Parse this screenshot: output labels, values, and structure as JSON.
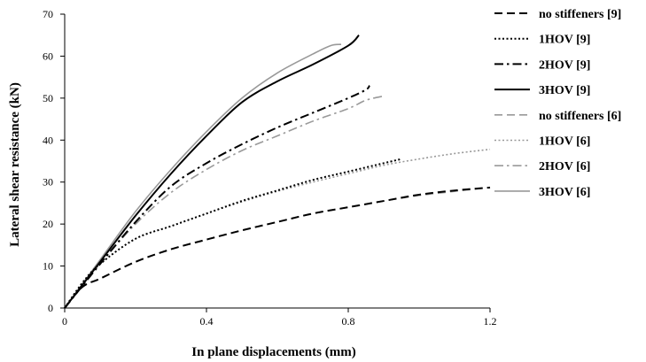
{
  "chart_data": {
    "type": "line",
    "title": "",
    "xlabel": "In plane displacements (mm)",
    "ylabel": "Lateral shear resistance (kN)",
    "xlim": [
      0,
      1.2
    ],
    "ylim": [
      0,
      70
    ],
    "x_ticks": [
      0,
      0.4,
      0.8,
      1.2
    ],
    "y_ticks": [
      0,
      10,
      20,
      30,
      40,
      50,
      60,
      70
    ],
    "x_tick_labels": [
      "0",
      "0.4",
      "0.8",
      "1.2"
    ],
    "y_tick_labels": [
      "0",
      "10",
      "20",
      "30",
      "40",
      "50",
      "60",
      "70"
    ],
    "grid": false,
    "legend_position": "right",
    "series": [
      {
        "name": "no stiffeners [9]",
        "color": "#000000",
        "style": "dashed",
        "points": [
          [
            0,
            0
          ],
          [
            0.05,
            5
          ],
          [
            0.1,
            7
          ],
          [
            0.2,
            11
          ],
          [
            0.3,
            14
          ],
          [
            0.4,
            16.3
          ],
          [
            0.5,
            18.5
          ],
          [
            0.6,
            20.5
          ],
          [
            0.7,
            22.5
          ],
          [
            0.8,
            24
          ],
          [
            0.9,
            25.5
          ],
          [
            1.0,
            27
          ],
          [
            1.1,
            28
          ],
          [
            1.2,
            28.7
          ]
        ]
      },
      {
        "name": "1HOV [9]",
        "color": "#000000",
        "style": "dotted",
        "points": [
          [
            0,
            0
          ],
          [
            0.05,
            6
          ],
          [
            0.1,
            10.5
          ],
          [
            0.2,
            16.5
          ],
          [
            0.3,
            19.5
          ],
          [
            0.4,
            22.5
          ],
          [
            0.5,
            25.5
          ],
          [
            0.6,
            28
          ],
          [
            0.7,
            30.5
          ],
          [
            0.8,
            32.5
          ],
          [
            0.9,
            34.5
          ],
          [
            0.95,
            35.5
          ]
        ]
      },
      {
        "name": "2HOV [9]",
        "color": "#000000",
        "style": "dashdot",
        "points": [
          [
            0,
            0
          ],
          [
            0.1,
            10.5
          ],
          [
            0.2,
            20.5
          ],
          [
            0.3,
            29
          ],
          [
            0.4,
            34.5
          ],
          [
            0.5,
            39
          ],
          [
            0.6,
            43
          ],
          [
            0.7,
            46.5
          ],
          [
            0.8,
            50
          ],
          [
            0.85,
            52
          ],
          [
            0.86,
            53
          ]
        ]
      },
      {
        "name": "3HOV [9]",
        "color": "#000000",
        "style": "solid",
        "points": [
          [
            0,
            0
          ],
          [
            0.1,
            11
          ],
          [
            0.2,
            22
          ],
          [
            0.3,
            32
          ],
          [
            0.4,
            41
          ],
          [
            0.5,
            49
          ],
          [
            0.6,
            54
          ],
          [
            0.7,
            58
          ],
          [
            0.8,
            62.5
          ],
          [
            0.83,
            65
          ]
        ]
      },
      {
        "name": "no stiffeners [6]",
        "color": "#999999",
        "style": "dashed",
        "points": [
          [
            0,
            0
          ],
          [
            0.05,
            5
          ],
          [
            0.1,
            7
          ],
          [
            0.2,
            11
          ],
          [
            0.3,
            14
          ],
          [
            0.4,
            16.3
          ],
          [
            0.5,
            18.5
          ],
          [
            0.6,
            20.5
          ],
          [
            0.7,
            22.5
          ],
          [
            0.8,
            24
          ],
          [
            0.9,
            25.5
          ],
          [
            1.0,
            26.8
          ],
          [
            1.1,
            27.8
          ],
          [
            1.2,
            28.7
          ]
        ]
      },
      {
        "name": "1HOV [6]",
        "color": "#999999",
        "style": "dotted",
        "points": [
          [
            0,
            0
          ],
          [
            0.05,
            6
          ],
          [
            0.1,
            10.5
          ],
          [
            0.2,
            16.5
          ],
          [
            0.3,
            19.5
          ],
          [
            0.4,
            22.5
          ],
          [
            0.5,
            25.3
          ],
          [
            0.6,
            27.8
          ],
          [
            0.7,
            30
          ],
          [
            0.8,
            32
          ],
          [
            0.9,
            34
          ],
          [
            1.0,
            35.5
          ],
          [
            1.1,
            36.8
          ],
          [
            1.2,
            37.8
          ]
        ]
      },
      {
        "name": "2HOV [6]",
        "color": "#999999",
        "style": "dashdot",
        "points": [
          [
            0,
            0
          ],
          [
            0.1,
            10.5
          ],
          [
            0.2,
            20
          ],
          [
            0.3,
            27.5
          ],
          [
            0.4,
            33
          ],
          [
            0.5,
            37.5
          ],
          [
            0.6,
            41
          ],
          [
            0.7,
            44.5
          ],
          [
            0.8,
            47.5
          ],
          [
            0.85,
            49.5
          ],
          [
            0.9,
            50.5
          ]
        ]
      },
      {
        "name": "3HOV [6]",
        "color": "#999999",
        "style": "solid",
        "points": [
          [
            0,
            0
          ],
          [
            0.1,
            11.5
          ],
          [
            0.2,
            23
          ],
          [
            0.3,
            33
          ],
          [
            0.4,
            42
          ],
          [
            0.5,
            50
          ],
          [
            0.6,
            56
          ],
          [
            0.7,
            60.5
          ],
          [
            0.75,
            62.5
          ],
          [
            0.78,
            62.8
          ]
        ]
      }
    ]
  }
}
